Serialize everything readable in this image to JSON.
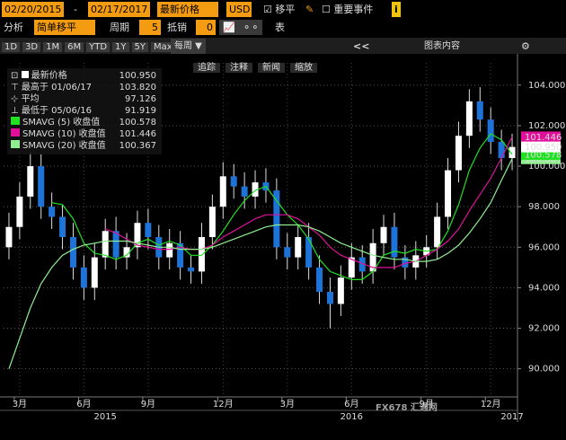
{
  "toolbar": {
    "start_date": "02/20/2015",
    "dash": "-",
    "end_date": "02/17/2017",
    "field": "最新价格",
    "currency": "USD",
    "moving_avg": "移平",
    "events": "重要事件",
    "info": "i",
    "analysis": "分析",
    "study": "简单移平",
    "period_label": "周期",
    "period": "5",
    "offset_label": "抵销",
    "offset": "0",
    "table": "表",
    "ranges": [
      "1D",
      "3D",
      "1M",
      "6M",
      "YTD",
      "1Y",
      "5Y",
      "Max"
    ],
    "frequency": "每周",
    "back": "<<",
    "chart_content": "图表内容",
    "tools": [
      "追踪",
      "注释",
      "新闻",
      "缩放"
    ]
  },
  "legend": {
    "last_label": "最新价格",
    "last_value": "100.950",
    "high_label": "最高于 01/06/17",
    "high_value": "103.820",
    "avg_label": "平均",
    "avg_value": "97.126",
    "low_label": "最低于 05/06/16",
    "low_value": "91.919",
    "sma_values": [
      "100.578",
      "101.446",
      "100.367"
    ]
  },
  "watermark": "FX678 汇通网",
  "chart_data": {
    "type": "candlestick",
    "categories": [
      null,
      "3月",
      null,
      null,
      null,
      null,
      null,
      "6月",
      null,
      null,
      null,
      null,
      null,
      "9月",
      null,
      null,
      null,
      null,
      null,
      null,
      "12月",
      null,
      null,
      null,
      null,
      null,
      "3月",
      null,
      null,
      null,
      null,
      null,
      "6月",
      null,
      null,
      null,
      null,
      null,
      null,
      "9月",
      null,
      null,
      null,
      null,
      null,
      "12月",
      null,
      null
    ],
    "year_labels": [
      null,
      null,
      null,
      null,
      null,
      null,
      null,
      null,
      null,
      "2015",
      null,
      null,
      null,
      null,
      null,
      null,
      null,
      null,
      null,
      null,
      null,
      null,
      null,
      null,
      null,
      null,
      null,
      null,
      null,
      null,
      null,
      null,
      "2016",
      null,
      null,
      null,
      null,
      null,
      null,
      null,
      null,
      null,
      null,
      null,
      null,
      null,
      null,
      "2017"
    ],
    "open": [
      96.0,
      97.0,
      98.5,
      100.0,
      98.0,
      97.5,
      96.5,
      95.0,
      94.0,
      95.5,
      96.8,
      95.5,
      96.0,
      97.2,
      96.5,
      95.5,
      96.2,
      95.0,
      94.8,
      96.5,
      98.0,
      99.5,
      99.0,
      98.5,
      99.2,
      98.8,
      96.0,
      95.5,
      96.5,
      95.0,
      93.8,
      93.2,
      94.5,
      95.5,
      94.8,
      96.2,
      97.0,
      95.5,
      95.0,
      95.6,
      96.0,
      97.5,
      99.8,
      101.5,
      103.2,
      102.3,
      101.2,
      100.4
    ],
    "high": [
      97.7,
      99.2,
      100.7,
      100.6,
      98.7,
      98.1,
      97.2,
      95.6,
      96.2,
      97.4,
      97.5,
      96.7,
      97.8,
      97.9,
      97.1,
      96.9,
      96.8,
      95.6,
      97.2,
      98.6,
      100.2,
      100.1,
      99.7,
      99.8,
      99.9,
      99.4,
      96.7,
      97.1,
      97.2,
      95.6,
      94.5,
      95.1,
      96.2,
      96.1,
      96.9,
      97.6,
      97.7,
      96.1,
      96.3,
      96.6,
      98.2,
      100.4,
      102.2,
      103.8,
      103.9,
      102.9,
      101.8,
      101.6
    ],
    "low": [
      95.4,
      96.4,
      97.9,
      97.4,
      96.9,
      95.9,
      94.4,
      93.4,
      93.4,
      94.9,
      94.9,
      94.9,
      95.4,
      95.9,
      94.9,
      94.9,
      94.4,
      94.2,
      94.2,
      95.9,
      97.4,
      98.4,
      97.9,
      97.9,
      98.2,
      95.4,
      94.9,
      94.9,
      94.4,
      93.2,
      92.0,
      92.6,
      93.9,
      94.2,
      94.2,
      95.6,
      94.9,
      94.4,
      94.4,
      95.0,
      95.4,
      96.9,
      99.2,
      100.9,
      101.7,
      100.6,
      99.8,
      99.8
    ],
    "close": [
      97.0,
      98.5,
      100.0,
      98.0,
      97.5,
      96.5,
      95.0,
      94.0,
      95.5,
      96.8,
      95.5,
      96.0,
      97.2,
      96.5,
      95.5,
      96.2,
      95.0,
      94.8,
      96.5,
      98.0,
      99.5,
      99.0,
      98.5,
      99.2,
      98.8,
      96.0,
      95.5,
      96.5,
      95.0,
      93.8,
      93.2,
      94.5,
      95.5,
      94.8,
      96.2,
      97.0,
      95.5,
      95.0,
      95.6,
      96.0,
      97.5,
      99.8,
      101.5,
      103.2,
      102.3,
      101.2,
      100.4,
      100.95
    ],
    "up_color": "#ffffff",
    "down_color": "#1e73d8",
    "series": [
      {
        "name": "SMAVG (5) 收盘值",
        "color": "#22e022",
        "values": [
          null,
          null,
          null,
          null,
          98.2,
          98.1,
          97.4,
          96.2,
          95.7,
          95.6,
          95.4,
          95.6,
          96.2,
          96.4,
          96.1,
          96.3,
          96.1,
          95.6,
          95.6,
          96.1,
          96.8,
          97.6,
          98.3,
          98.8,
          99.0,
          98.3,
          97.6,
          97.1,
          96.4,
          95.4,
          94.8,
          94.6,
          94.4,
          94.4,
          94.8,
          95.6,
          95.8,
          95.7,
          95.9,
          95.8,
          95.9,
          96.8,
          98.1,
          99.8,
          100.9,
          101.6,
          101.3,
          100.578
        ]
      },
      {
        "name": "SMAVG (10) 收盘值",
        "color": "#e0109a",
        "values": [
          null,
          null,
          null,
          null,
          null,
          null,
          null,
          null,
          null,
          96.9,
          96.7,
          96.4,
          96.1,
          96.0,
          95.9,
          95.9,
          96.0,
          95.9,
          95.9,
          96.1,
          96.5,
          96.8,
          97.1,
          97.4,
          97.6,
          97.6,
          97.6,
          97.4,
          97.0,
          96.6,
          96.0,
          95.6,
          95.4,
          95.2,
          95.0,
          95.0,
          95.0,
          95.2,
          95.3,
          95.6,
          95.9,
          96.3,
          96.9,
          97.8,
          98.6,
          99.4,
          100.4,
          101.446
        ]
      },
      {
        "name": "SMAVG (20) 收盘值",
        "color": "#90ee90",
        "values": [
          90.0,
          91.5,
          93.0,
          94.2,
          95.0,
          95.6,
          95.9,
          96.1,
          96.2,
          96.3,
          96.3,
          96.3,
          96.2,
          96.1,
          96.0,
          96.0,
          95.9,
          95.9,
          95.9,
          96.0,
          96.2,
          96.4,
          96.6,
          96.8,
          97.0,
          97.1,
          97.1,
          97.1,
          97.0,
          96.8,
          96.5,
          96.2,
          96.0,
          95.8,
          95.6,
          95.5,
          95.4,
          95.4,
          95.3,
          95.3,
          95.4,
          95.7,
          96.1,
          96.7,
          97.4,
          98.2,
          99.3,
          100.367
        ]
      }
    ],
    "ylim": [
      88.7,
      105.1
    ],
    "yticks": [
      {
        "value": 90,
        "label": "90.000"
      },
      {
        "value": 92,
        "label": "92.000"
      },
      {
        "value": 94,
        "label": "94.000"
      },
      {
        "value": 96,
        "label": "96.000"
      },
      {
        "value": 98,
        "label": "98.000"
      },
      {
        "value": 100,
        "label": "100.000"
      },
      {
        "value": 102,
        "label": "102.000"
      },
      {
        "value": 104,
        "label": "104.000"
      }
    ],
    "grid": true
  }
}
